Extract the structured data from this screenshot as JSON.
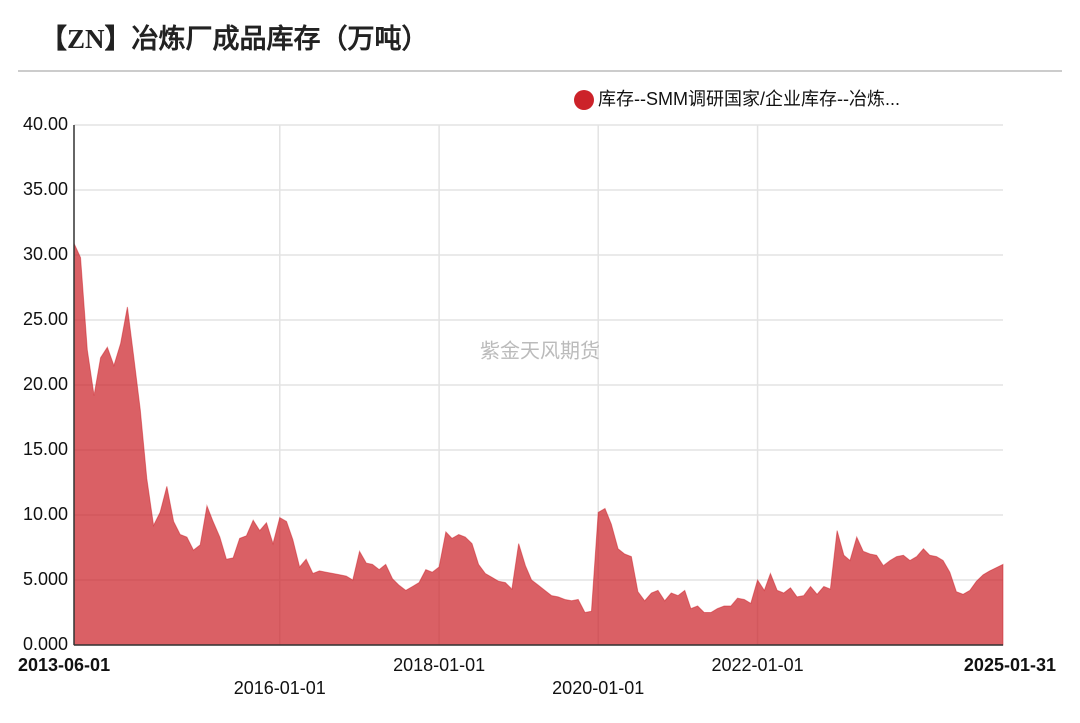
{
  "chart_data": {
    "type": "area",
    "title": "【ZN】冶炼厂成品库存（万吨）",
    "watermark": "紫金天风期货",
    "legend": "top-right",
    "grid": true,
    "x": [
      "2013-06-01",
      "2013-07-01",
      "2013-08-01",
      "2013-09-01",
      "2013-10-01",
      "2013-11-01",
      "2013-12-01",
      "2014-01-01",
      "2014-02-01",
      "2014-03-01",
      "2014-04-01",
      "2014-05-01",
      "2014-06-01",
      "2014-07-01",
      "2014-08-01",
      "2014-09-01",
      "2014-10-01",
      "2014-11-01",
      "2014-12-01",
      "2015-01-01",
      "2015-02-01",
      "2015-03-01",
      "2015-04-01",
      "2015-05-01",
      "2015-06-01",
      "2015-07-01",
      "2015-08-01",
      "2015-09-01",
      "2015-10-01",
      "2015-11-01",
      "2015-12-01",
      "2016-01-01",
      "2016-02-01",
      "2016-03-01",
      "2016-04-01",
      "2016-05-01",
      "2016-06-01",
      "2016-07-01",
      "2016-08-01",
      "2016-09-01",
      "2016-10-01",
      "2016-11-01",
      "2016-12-01",
      "2017-01-01",
      "2017-02-01",
      "2017-03-01",
      "2017-04-01",
      "2017-05-01",
      "2017-06-01",
      "2017-07-01",
      "2017-08-01",
      "2017-09-01",
      "2017-10-01",
      "2017-11-01",
      "2017-12-01",
      "2018-01-01",
      "2018-02-01",
      "2018-03-01",
      "2018-04-01",
      "2018-05-01",
      "2018-06-01",
      "2018-07-01",
      "2018-08-01",
      "2018-09-01",
      "2018-10-01",
      "2018-11-01",
      "2018-12-01",
      "2019-01-01",
      "2019-02-01",
      "2019-03-01",
      "2019-04-01",
      "2019-05-01",
      "2019-06-01",
      "2019-07-01",
      "2019-08-01",
      "2019-09-01",
      "2019-10-01",
      "2019-11-01",
      "2019-12-01",
      "2020-01-01",
      "2020-02-01",
      "2020-03-01",
      "2020-04-01",
      "2020-05-01",
      "2020-06-01",
      "2020-07-01",
      "2020-08-01",
      "2020-09-01",
      "2020-10-01",
      "2020-11-01",
      "2020-12-01",
      "2021-01-01",
      "2021-02-01",
      "2021-03-01",
      "2021-04-01",
      "2021-05-01",
      "2021-06-01",
      "2021-07-01",
      "2021-08-01",
      "2021-09-01",
      "2021-10-01",
      "2021-11-01",
      "2021-12-01",
      "2022-01-01",
      "2022-02-01",
      "2022-03-01",
      "2022-04-01",
      "2022-05-01",
      "2022-06-01",
      "2022-07-01",
      "2022-08-01",
      "2022-09-01",
      "2022-10-01",
      "2022-11-01",
      "2022-12-01",
      "2023-01-01",
      "2023-02-01",
      "2023-03-01",
      "2023-04-01",
      "2023-05-01",
      "2023-06-01",
      "2023-07-01",
      "2023-08-01",
      "2023-09-01",
      "2023-10-01",
      "2023-11-01",
      "2023-12-01",
      "2024-01-01",
      "2024-02-01",
      "2024-03-01",
      "2024-04-01",
      "2024-05-01",
      "2024-06-01",
      "2024-07-01",
      "2024-08-01",
      "2024-09-01",
      "2024-10-01",
      "2024-11-01",
      "2024-12-01",
      "2025-01-31"
    ],
    "series": [
      {
        "name": "库存--SMM调研国家/企业库存--冶炼...",
        "color": "#cc2229",
        "values": [
          30.9,
          29.8,
          22.7,
          19.2,
          22.1,
          22.9,
          21.5,
          23.2,
          26.0,
          22.3,
          18.1,
          12.8,
          9.2,
          10.2,
          12.2,
          9.5,
          8.5,
          8.3,
          7.3,
          7.7,
          10.7,
          9.5,
          8.3,
          6.6,
          6.7,
          8.2,
          8.4,
          9.6,
          8.8,
          9.4,
          7.8,
          9.8,
          9.5,
          8.1,
          6.0,
          6.6,
          5.5,
          5.7,
          5.6,
          5.5,
          5.4,
          5.3,
          5.0,
          7.2,
          6.3,
          6.2,
          5.8,
          6.2,
          5.1,
          4.6,
          4.2,
          4.5,
          4.8,
          5.8,
          5.6,
          6.0,
          8.7,
          8.2,
          8.5,
          8.3,
          7.8,
          6.2,
          5.5,
          5.2,
          4.9,
          4.8,
          4.3,
          7.8,
          6.1,
          5.0,
          4.6,
          4.2,
          3.8,
          3.7,
          3.5,
          3.4,
          3.5,
          2.5,
          2.6,
          10.2,
          10.5,
          9.3,
          7.4,
          7.0,
          6.8,
          4.1,
          3.4,
          4.0,
          4.2,
          3.4,
          4.0,
          3.8,
          4.2,
          2.8,
          3.0,
          2.5,
          2.5,
          2.8,
          3.0,
          3.0,
          3.6,
          3.5,
          3.2,
          5.0,
          4.2,
          5.5,
          4.2,
          4.0,
          4.4,
          3.7,
          3.8,
          4.5,
          3.9,
          4.5,
          4.3,
          8.8,
          6.9,
          6.5,
          8.3,
          7.2,
          7.0,
          6.9,
          6.1,
          6.5,
          6.8,
          6.9,
          6.5,
          6.8,
          7.4,
          6.9,
          6.8,
          6.5,
          5.6,
          4.1,
          3.9,
          4.2,
          4.9,
          5.4,
          5.7,
          6.2
        ]
      }
    ],
    "xlim": [
      "2013-06-01",
      "2025-01-31"
    ],
    "xticks": [
      "2013-06-01",
      "2016-01-01",
      "2018-01-01",
      "2020-01-01",
      "2022-01-01",
      "2025-01-31"
    ],
    "ylim": [
      0,
      40
    ],
    "yticks": [
      {
        "value": 0,
        "label": "0.000"
      },
      {
        "value": 5,
        "label": "5.000"
      },
      {
        "value": 10,
        "label": "10.00"
      },
      {
        "value": 15,
        "label": "15.00"
      },
      {
        "value": 20,
        "label": "20.00"
      },
      {
        "value": 25,
        "label": "25.00"
      },
      {
        "value": 30,
        "label": "30.00"
      },
      {
        "value": 35,
        "label": "35.00"
      },
      {
        "value": 40,
        "label": "40.00"
      }
    ]
  }
}
